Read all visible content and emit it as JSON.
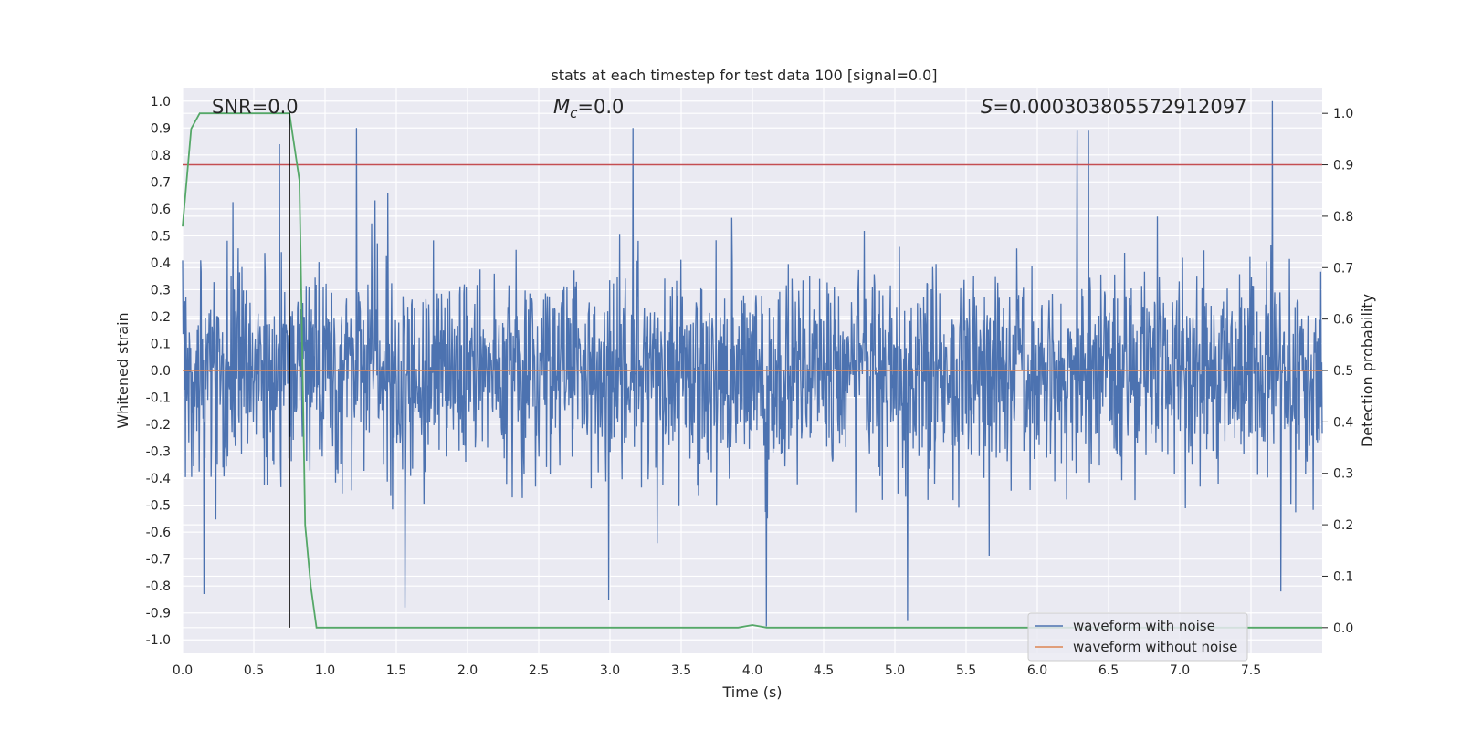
{
  "chart_data": {
    "type": "line",
    "title": "stats at each timestep for test data 100 [signal=0.0]",
    "xlabel": "Time (s)",
    "ylabel_left": "Whitened strain",
    "ylabel_right": "Detection probability",
    "xlim": [
      0.0,
      8.0
    ],
    "ylim_left": [
      -1.05,
      1.05
    ],
    "ylim_right": [
      -0.05,
      1.05
    ],
    "x_ticks": [
      0.0,
      0.5,
      1.0,
      1.5,
      2.0,
      2.5,
      3.0,
      3.5,
      4.0,
      4.5,
      5.0,
      5.5,
      6.0,
      6.5,
      7.0,
      7.5
    ],
    "x_tick_labels": [
      "0.0",
      "0.5",
      "1.0",
      "1.5",
      "2.0",
      "2.5",
      "3.0",
      "3.5",
      "4.0",
      "4.5",
      "5.0",
      "5.5",
      "6.0",
      "6.5",
      "7.0",
      "7.5"
    ],
    "y_left_ticks": [
      1.0,
      0.9,
      0.8,
      0.7,
      0.6,
      0.5,
      0.4,
      0.3,
      0.2,
      0.1,
      0.0,
      -0.1,
      -0.2,
      -0.3,
      -0.4,
      -0.5,
      -0.6,
      -0.7,
      -0.8,
      -0.9,
      -1.0
    ],
    "y_left_tick_labels": [
      "1.0",
      "0.9",
      "0.8",
      "0.7",
      "0.6",
      "0.5",
      "0.4",
      "0.3",
      "0.2",
      "0.1",
      "0.0",
      "-0.1",
      "-0.2",
      "-0.3",
      "-0.4",
      "-0.5",
      "-0.6",
      "-0.7",
      "-0.8",
      "-0.9",
      "-1.0"
    ],
    "y_right_ticks": [
      1.0,
      0.9,
      0.8,
      0.7,
      0.6,
      0.5,
      0.4,
      0.3,
      0.2,
      0.1,
      0.0
    ],
    "y_right_tick_labels": [
      "1.0",
      "0.9",
      "0.8",
      "0.7",
      "0.6",
      "0.5",
      "0.4",
      "0.3",
      "0.2",
      "0.1",
      "0.0"
    ],
    "annotations": {
      "snr": "SNR=0.0",
      "mc_symbol": "M",
      "mc_sub": "c",
      "mc_value": "=0.0",
      "s_symbol": "S",
      "s_value": "=0.000303805572912097"
    },
    "series": [
      {
        "name": "waveform with noise",
        "axis": "left",
        "color": "#4c72b0",
        "description": "whitened noise strain, dense band ~[-0.4,0.4] with spikes up to ~1.0 and down to ~-0.95",
        "duration": 8.0,
        "max": 1.0,
        "min": -0.95
      },
      {
        "name": "waveform without noise",
        "axis": "left",
        "color": "#dd8452",
        "x": [
          0.0,
          8.0
        ],
        "y": [
          0.0,
          0.0
        ]
      },
      {
        "name": "detection probability",
        "axis": "right",
        "color": "#55a868",
        "x": [
          0.0,
          0.06,
          0.12,
          0.5,
          0.75,
          0.82,
          0.86,
          0.9,
          0.94,
          1.0,
          3.9,
          4.0,
          4.1,
          8.0
        ],
        "y": [
          0.78,
          0.97,
          1.0,
          1.0,
          1.0,
          0.87,
          0.2,
          0.08,
          0.0,
          0.0,
          0.0,
          0.005,
          0.0,
          0.0
        ]
      }
    ],
    "threshold_line": {
      "axis": "right",
      "value": 0.9,
      "color": "#c44e52"
    },
    "marker_line": {
      "x": 0.75,
      "from_right": 0.0,
      "to_right": 1.0,
      "color": "#000000"
    },
    "legend": {
      "position": "lower-right",
      "entries": [
        {
          "label": "waveform with noise",
          "color": "#4c72b0"
        },
        {
          "label": "waveform without noise",
          "color": "#dd8452"
        }
      ]
    },
    "grid": true,
    "background": "#eaeaf2"
  }
}
